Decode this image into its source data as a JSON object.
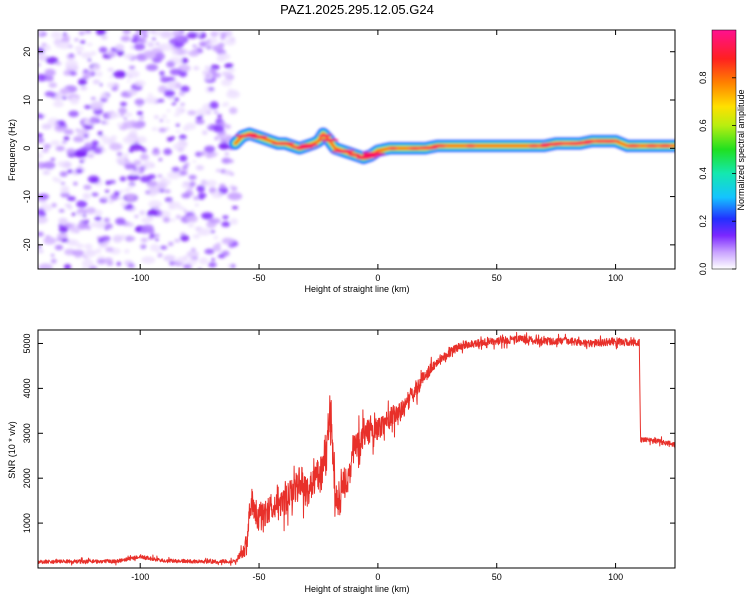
{
  "chart_data": [
    {
      "type": "heatmap",
      "title": "PAZ1.2025.295.12.05.G24",
      "xlabel": "Height of straight line (km)",
      "ylabel": "Frequency (Hz)",
      "xlim": [
        -143,
        125
      ],
      "ylim": [
        -25,
        24.5
      ],
      "xticks": [
        -100,
        -50,
        0,
        50,
        100
      ],
      "xtick_labels": [
        "-100",
        "-50",
        "0",
        "50",
        "100"
      ],
      "yticks": [
        -20,
        -10,
        0,
        10,
        20
      ],
      "ytick_labels": [
        "-20",
        "-10",
        "0",
        "10",
        "20"
      ],
      "noise_region": {
        "x_from": -143,
        "x_to": -60
      },
      "ridge": {
        "x": [
          -60,
          -57,
          -54,
          -51,
          -48,
          -45,
          -42,
          -39,
          -36,
          -33,
          -30,
          -27,
          -25,
          -23,
          -21,
          -18,
          -15,
          -12,
          -9,
          -6,
          -3,
          0,
          5,
          10,
          20,
          25,
          30,
          40,
          50,
          60,
          68,
          70,
          75,
          80,
          85,
          90,
          95,
          100,
          105,
          110,
          115,
          120,
          125
        ],
        "y": [
          1.0,
          2.5,
          3.0,
          2.5,
          2.0,
          1.5,
          1.0,
          1.0,
          0.5,
          0.0,
          0.5,
          1.0,
          1.5,
          3.0,
          2.0,
          0.0,
          -0.5,
          -1.0,
          -1.5,
          -2.0,
          -1.5,
          -0.5,
          0.0,
          0.0,
          0.0,
          0.5,
          0.5,
          0.5,
          0.5,
          0.5,
          0.5,
          0.5,
          1.0,
          1.0,
          1.0,
          1.5,
          1.5,
          1.5,
          0.5,
          0.5,
          0.5,
          0.5,
          0.5
        ]
      },
      "colorbar": {
        "label": "Normalized spectral amplitude",
        "range": [
          0,
          1
        ],
        "ticks": [
          0.0,
          0.2,
          0.4,
          0.6,
          0.8
        ],
        "tick_labels": [
          "0.0",
          "0.2",
          "0.4",
          "0.6",
          "0.8"
        ]
      }
    },
    {
      "type": "line",
      "xlabel": "Height of straight line (km)",
      "ylabel": "SNR (10 * v/v)",
      "xlim": [
        -143,
        125
      ],
      "ylim": [
        0,
        5300
      ],
      "xticks": [
        -100,
        -50,
        0,
        50,
        100
      ],
      "xtick_labels": [
        "-100",
        "-50",
        "0",
        "50",
        "100"
      ],
      "yticks": [
        1000,
        2000,
        3000,
        4000,
        5000
      ],
      "ytick_labels": [
        "1000",
        "2000",
        "3000",
        "4000",
        "5000"
      ],
      "series": [
        {
          "name": "SNR",
          "color": "#e8302a",
          "x": [
            -143,
            -110,
            -100,
            -90,
            -80,
            -70,
            -60,
            -56,
            -54,
            -53,
            -50,
            -45,
            -42,
            -40,
            -35,
            -33,
            -30,
            -25,
            -22,
            -20,
            -18,
            -16,
            -15,
            -12,
            -10,
            -5,
            0,
            5,
            10,
            15,
            20,
            25,
            30,
            35,
            40,
            50,
            60,
            70,
            80,
            90,
            100,
            109,
            110,
            110.5,
            115,
            120,
            125
          ],
          "y": [
            140,
            150,
            250,
            160,
            150,
            140,
            150,
            400,
            1200,
            1450,
            1100,
            1350,
            1500,
            1400,
            1750,
            2000,
            1700,
            2100,
            2300,
            3500,
            1600,
            1300,
            1900,
            2000,
            2700,
            3000,
            3100,
            3350,
            3500,
            3900,
            4300,
            4600,
            4800,
            4950,
            5000,
            5050,
            5100,
            5050,
            5050,
            5000,
            5050,
            5000,
            5050,
            2850,
            2850,
            2800,
            2750
          ],
          "noise_amp": [
            60,
            60,
            60,
            60,
            60,
            60,
            60,
            200,
            450,
            450,
            450,
            450,
            450,
            450,
            500,
            500,
            500,
            500,
            500,
            500,
            500,
            450,
            450,
            450,
            420,
            400,
            350,
            350,
            300,
            300,
            200,
            150,
            150,
            120,
            120,
            120,
            120,
            120,
            120,
            120,
            120,
            120,
            120,
            80,
            80,
            80,
            80
          ]
        }
      ]
    }
  ]
}
